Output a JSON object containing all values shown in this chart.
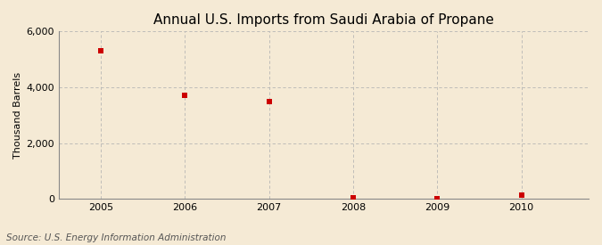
{
  "title": "Annual U.S. Imports from Saudi Arabia of Propane",
  "ylabel": "Thousand Barrels",
  "source_text": "Source: U.S. Energy Information Administration",
  "x_values": [
    2005,
    2006,
    2007,
    2008,
    2009,
    2010
  ],
  "y_values": [
    5300,
    3700,
    3500,
    40,
    0,
    120
  ],
  "ylim": [
    0,
    6000
  ],
  "yticks": [
    0,
    2000,
    4000,
    6000
  ],
  "xlim": [
    2004.5,
    2010.8
  ],
  "xticks": [
    2005,
    2006,
    2007,
    2008,
    2009,
    2010
  ],
  "marker_color": "#cc0000",
  "marker": "s",
  "marker_size": 4,
  "background_color": "#f5ead5",
  "grid_color": "#b0b0b0",
  "title_fontsize": 11,
  "label_fontsize": 8,
  "tick_fontsize": 8,
  "source_fontsize": 7.5
}
